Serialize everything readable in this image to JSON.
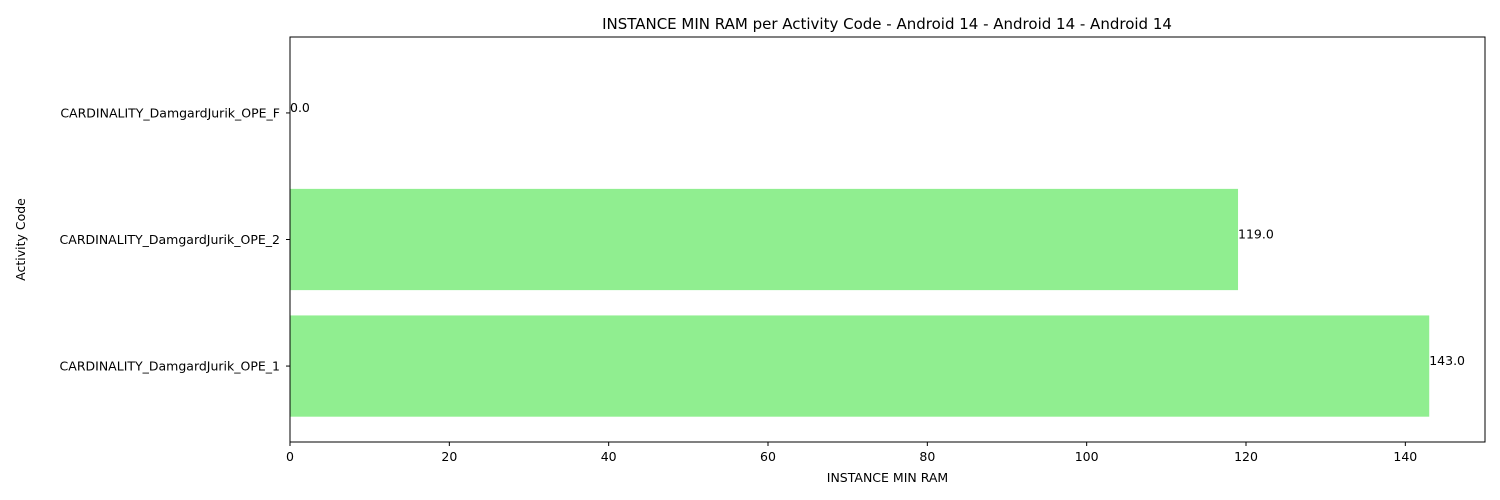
{
  "chart_data": {
    "type": "bar",
    "orientation": "horizontal",
    "title": "INSTANCE MIN RAM per Activity Code - Android 14 - Android 14 - Android 14",
    "xlabel": "INSTANCE MIN RAM",
    "ylabel": "Activity Code",
    "categories": [
      "CARDINALITY_DamgardJurik_OPE_1",
      "CARDINALITY_DamgardJurik_OPE_2",
      "CARDINALITY_DamgardJurik_OPE_F"
    ],
    "values": [
      143.0,
      119.0,
      0.0
    ],
    "data_labels": [
      "143.0",
      "119.0",
      "0.0"
    ],
    "xlim": [
      0,
      150
    ],
    "xticks": [
      0,
      20,
      40,
      60,
      80,
      100,
      120,
      140
    ],
    "grid": false,
    "legend": "none",
    "bar_color": "#90ee90"
  }
}
